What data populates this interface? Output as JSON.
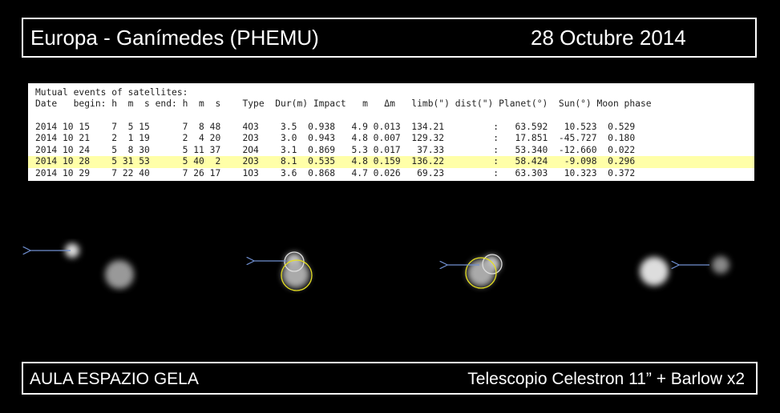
{
  "header": {
    "title": "Europa - Ganímedes  (PHEMU)",
    "date": "28 Octubre 2014"
  },
  "table": {
    "caption": "Mutual events of satellites:",
    "columns": "Date   begin: h  m  s end: h  m  s    Type  Dur(m) Impact   m   Δm   limb(\") dist(\") Planet(°)  Sun(°) Moon phase",
    "rows": [
      "2014 10 15    7  5 15      7  8 48    4O3    3.5  0.938   4.9 0.013  134.21         :   63.592   10.523  0.529",
      "2014 10 21    2  1 19      2  4 20    2O3    3.0  0.943   4.8 0.007  129.32         :   17.851  -45.727  0.180",
      "2014 10 24    5  8 30      5 11 37    2O4    3.1  0.869   5.3 0.017   37.33         :   53.340  -12.660  0.022",
      "2014 10 28    5 31 53      5 40  2    2O3    8.1  0.535   4.8 0.159  136.22         :   58.424   -9.098  0.296",
      "2014 10 29    7 22 40      7 26 17    1O3    3.6  0.868   4.7 0.026   69.23         :   63.303   10.323  0.372"
    ]
  },
  "footer": {
    "left": "AULA ESPAZIO GELA",
    "right": "Telescopio Celestron 11”  +  Barlow x2"
  }
}
